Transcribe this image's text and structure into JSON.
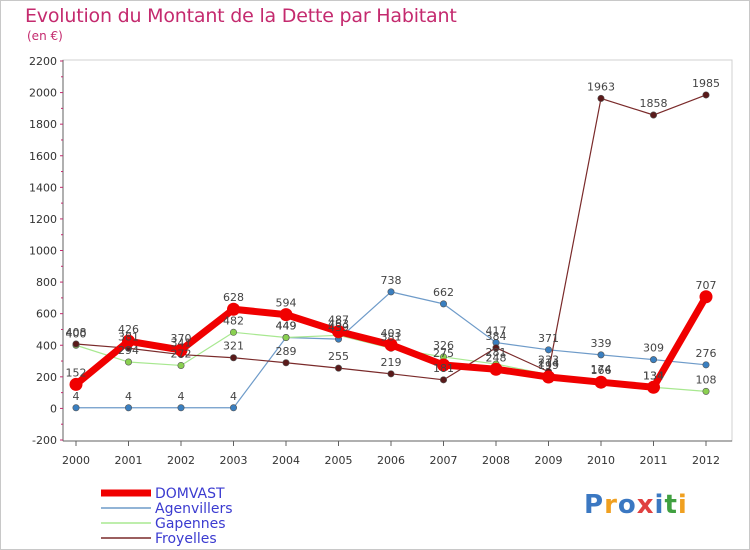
{
  "title": "Evolution du Montant de la Dette par Habitant",
  "subtitle": "(en €)",
  "logo": {
    "text": "Proxiti",
    "colors": [
      "#3b78c2",
      "#f0a020",
      "#3b78c2",
      "#e04040",
      "#3b78c2",
      "#40a040",
      "#f0a020"
    ]
  },
  "chart_data": {
    "type": "line",
    "title": "Evolution du Montant de la Dette par Habitant",
    "subtitle": "(en €)",
    "ylim": [
      -200,
      2200
    ],
    "yticks": [
      -200,
      0,
      200,
      400,
      600,
      800,
      1000,
      1200,
      1400,
      1600,
      1800,
      2000,
      2200
    ],
    "categories": [
      "2000",
      "2001",
      "2002",
      "2003",
      "2004",
      "2005",
      "2006",
      "2007",
      "2008",
      "2009",
      "2010",
      "2011",
      "2012"
    ],
    "grid": false,
    "legend_position": "bottom-left",
    "series": [
      {
        "name": "Agenvillers",
        "color": "#6e9bc9",
        "marker": "#3a7fc0",
        "width": 1.2,
        "values": [
          4,
          4,
          4,
          4,
          449,
          439,
          738,
          662,
          417,
          371,
          339,
          309,
          276
        ],
        "labels": [
          "4",
          "4",
          "4",
          "4",
          "449",
          "439",
          "738",
          "662",
          "417",
          "371",
          "339",
          "309",
          "276"
        ]
      },
      {
        "name": "Gapennes",
        "color": "#a8e890",
        "marker": "#8ad050",
        "width": 1.2,
        "values": [
          400,
          294,
          272,
          482,
          449,
          463,
          381,
          326,
          281,
          214,
          174,
          134,
          108
        ],
        "labels": [
          "400",
          "294",
          "272",
          "482",
          "449",
          "463",
          "381",
          "326",
          "281",
          "214",
          "174",
          "134",
          "108"
        ]
      },
      {
        "name": "Froyelles",
        "color": "#7a2a2a",
        "marker": "#5a1a1a",
        "width": 1.2,
        "values": [
          408,
          381,
          341,
          321,
          289,
          255,
          219,
          181,
          384,
          233,
          1963,
          1858,
          1985
        ],
        "labels": [
          "408",
          "381",
          "341",
          "321",
          "289",
          "255",
          "219",
          "181",
          "384",
          "233",
          "1963",
          "1858",
          "1985"
        ]
      },
      {
        "name": "DOMVAST",
        "color": "#f00000",
        "marker": "#f00000",
        "width": 7,
        "values": [
          152,
          426,
          370,
          628,
          594,
          487,
          403,
          275,
          248,
          199,
          166,
          134,
          707
        ],
        "labels": [
          "152",
          "426",
          "370",
          "628",
          "594",
          "487",
          "403",
          "275",
          "248",
          "199",
          "166",
          "134",
          "707"
        ]
      }
    ]
  }
}
